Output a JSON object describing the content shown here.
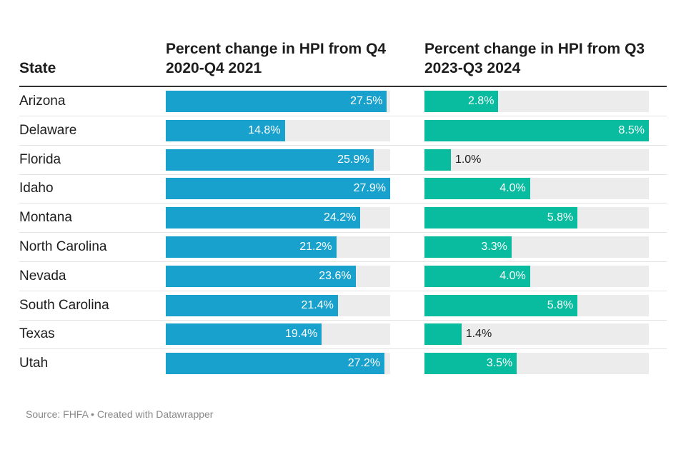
{
  "chart_data": {
    "type": "table",
    "headers": {
      "state": "State",
      "col1": "Percent change in HPI from Q4 2020-Q4 2021",
      "col2": "Percent change in HPI from Q3 2023-Q3 2024"
    },
    "col1_max": 27.9,
    "col2_max": 8.5,
    "rows": [
      {
        "state": "Arizona",
        "v1": 27.5,
        "l1": "27.5%",
        "v2": 2.8,
        "l2": "2.8%"
      },
      {
        "state": "Delaware",
        "v1": 14.8,
        "l1": "14.8%",
        "v2": 8.5,
        "l2": "8.5%"
      },
      {
        "state": "Florida",
        "v1": 25.9,
        "l1": "25.9%",
        "v2": 1.0,
        "l2": "1.0%"
      },
      {
        "state": "Idaho",
        "v1": 27.9,
        "l1": "27.9%",
        "v2": 4.0,
        "l2": "4.0%"
      },
      {
        "state": "Montana",
        "v1": 24.2,
        "l1": "24.2%",
        "v2": 5.8,
        "l2": "5.8%"
      },
      {
        "state": "North Carolina",
        "v1": 21.2,
        "l1": "21.2%",
        "v2": 3.3,
        "l2": "3.3%"
      },
      {
        "state": "Nevada",
        "v1": 23.6,
        "l1": "23.6%",
        "v2": 4.0,
        "l2": "4.0%"
      },
      {
        "state": "South Carolina",
        "v1": 21.4,
        "l1": "21.4%",
        "v2": 5.8,
        "l2": "5.8%"
      },
      {
        "state": "Texas",
        "v1": 19.4,
        "l1": "19.4%",
        "v2": 1.4,
        "l2": "1.4%"
      },
      {
        "state": "Utah",
        "v1": 27.2,
        "l1": "27.2%",
        "v2": 3.5,
        "l2": "3.5%"
      }
    ],
    "colors": {
      "col1": "#18a1cd",
      "col2": "#09bb9f",
      "track": "#ececec"
    },
    "source": "Source: FHFA • Created with Datawrapper"
  }
}
